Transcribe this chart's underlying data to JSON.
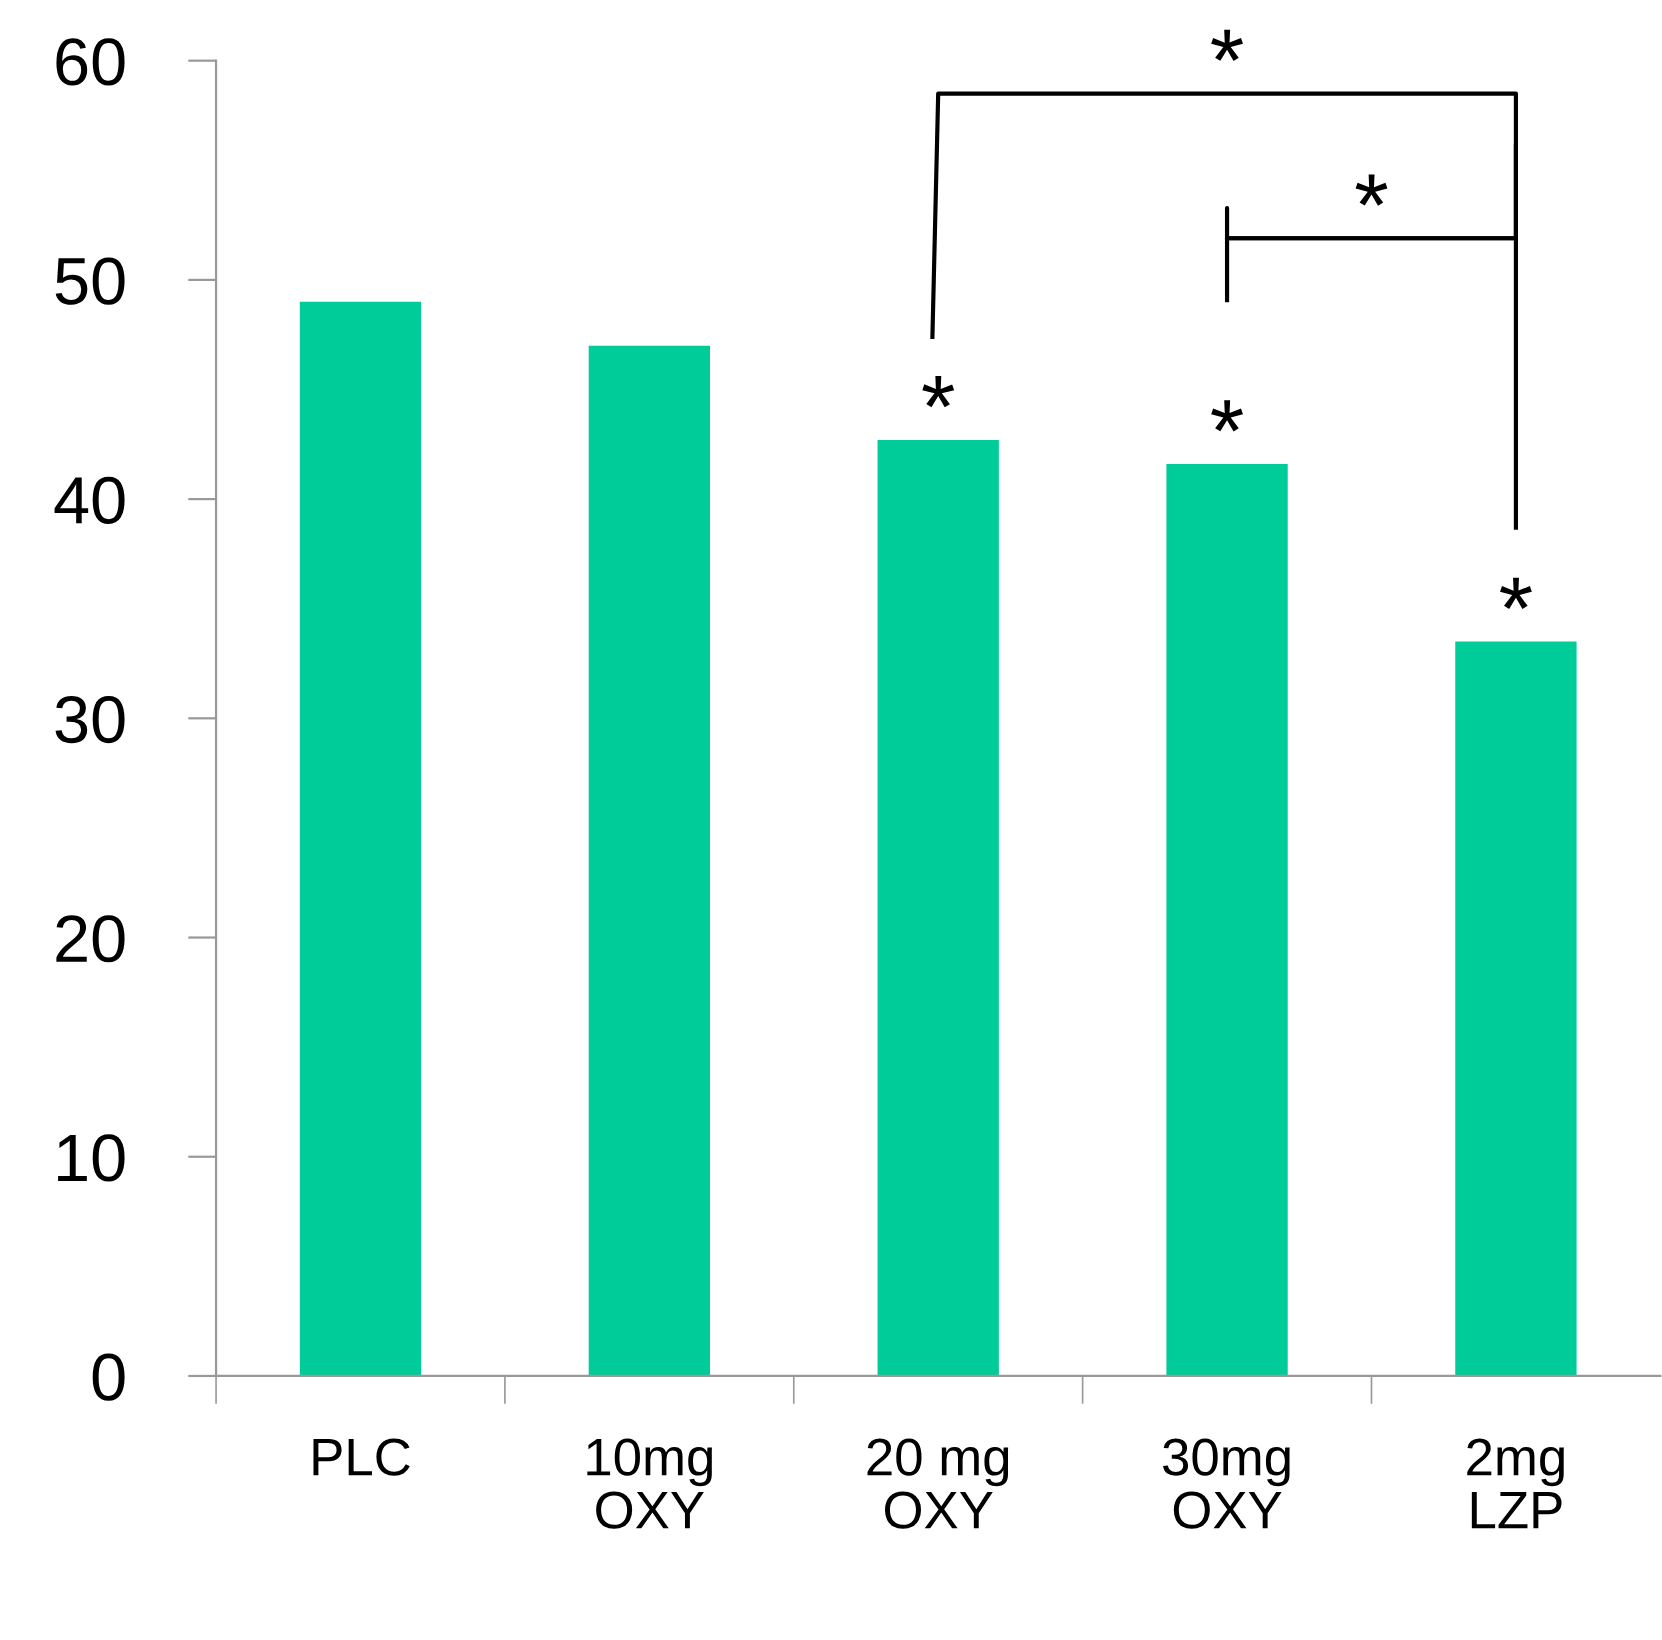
{
  "chart_data": {
    "type": "bar",
    "categories": [
      "PLC",
      "10mg\nOXY",
      "20 mg\nOXY",
      "30mg\nOXY",
      "2mg\nLZP"
    ],
    "values": [
      49,
      47,
      42.7,
      41.6,
      33.5
    ],
    "color": "#00cc99",
    "ylim": [
      0,
      60
    ],
    "yticks": [
      0,
      10,
      20,
      30,
      40,
      50,
      60
    ],
    "grid": false,
    "legend": false,
    "annotations": [
      {
        "text": "*",
        "x": "20 mg\nOXY",
        "y": 42.7
      },
      {
        "text": "*",
        "x": "30mg\nOXY",
        "y": 41.6
      },
      {
        "text": "*",
        "x": "2mg\nLZP",
        "y": 33.5
      },
      "*",
      "*"
    ]
  }
}
